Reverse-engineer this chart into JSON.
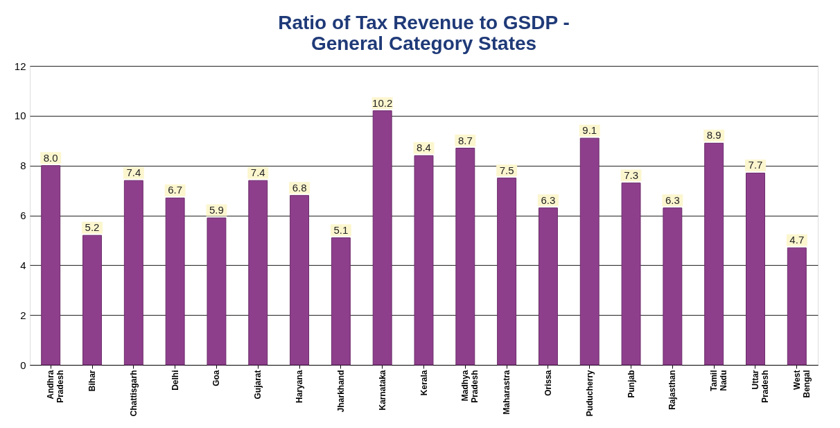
{
  "chart_data": {
    "type": "bar",
    "title": "Ratio of Tax Revenue to GSDP -\nGeneral Category States",
    "categories": [
      "Andhra Pradesh",
      "Bihar",
      "Chattisgarh",
      "Delhi",
      "Goa",
      "Gujarat",
      "Haryana",
      "Jharkhand",
      "Karnataka",
      "Kerala",
      "Madhya Pradesh",
      "Maharastra",
      "Orissa",
      "Puducherry",
      "Punjab",
      "Rajasthan",
      "Tamil Nadu",
      "Uttar Pradesh",
      "West Bengal"
    ],
    "values": [
      8.0,
      5.2,
      7.4,
      6.7,
      5.9,
      7.4,
      6.8,
      5.1,
      10.2,
      8.4,
      8.7,
      7.5,
      6.3,
      9.1,
      7.3,
      6.3,
      8.9,
      7.7,
      4.7
    ],
    "color": "#8e3f8c",
    "value_labels": [
      "8.0",
      "5.2",
      "7.4",
      "6.7",
      "5.9",
      "7.4",
      "6.8",
      "5.1",
      "10.2",
      "8.4",
      "8.7",
      "7.5",
      "6.3",
      "9.1",
      "7.3",
      "6.3",
      "8.9",
      "7.7",
      "4.7"
    ],
    "ylim": [
      0,
      12
    ],
    "yticks": [
      0,
      2,
      4,
      6,
      8,
      10,
      12
    ],
    "grid": "y"
  }
}
